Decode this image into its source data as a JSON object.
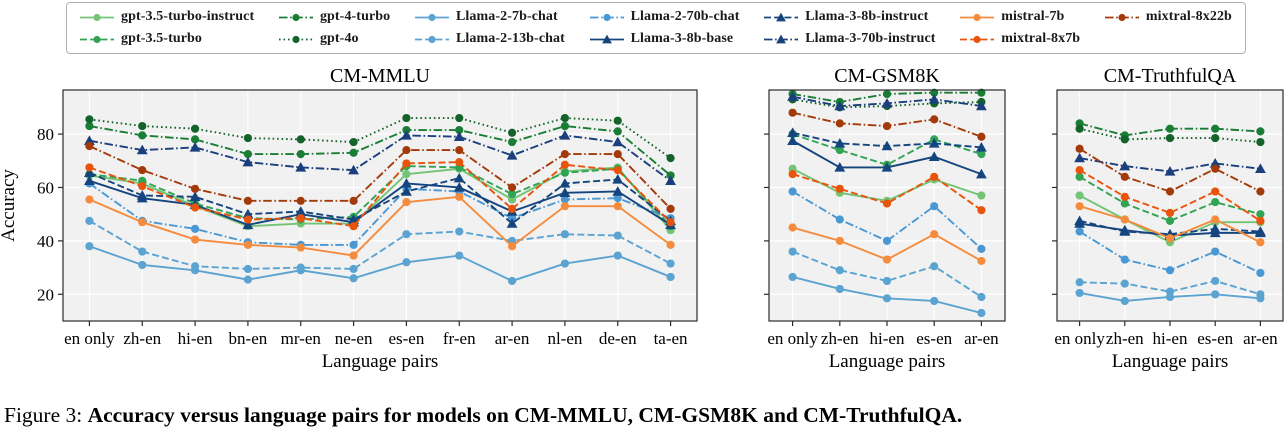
{
  "figure": {
    "caption_prefix": "Figure 3: ",
    "caption_bold": "Accuracy versus language pairs for models on CM-MMLU, CM-GSM8K and CM-TruthfulQA."
  },
  "models": [
    {
      "name": "gpt-3.5-turbo-instruct",
      "color": "#74c476",
      "dash": "solid",
      "marker": "circle"
    },
    {
      "name": "gpt-3.5-turbo",
      "color": "#31a354",
      "dash": "dashed",
      "marker": "circle"
    },
    {
      "name": "gpt-4-turbo",
      "color": "#1a7d36",
      "dash": "dashdot",
      "marker": "circle"
    },
    {
      "name": "gpt-4o",
      "color": "#14632a",
      "dash": "dotted",
      "marker": "circle"
    },
    {
      "name": "Llama-2-7b-chat",
      "color": "#5ba3d0",
      "dash": "solid",
      "marker": "circle"
    },
    {
      "name": "Llama-2-13b-chat",
      "color": "#5ba3d0",
      "dash": "dashed",
      "marker": "circle"
    },
    {
      "name": "Llama-2-70b-chat",
      "color": "#4a98d3",
      "dash": "dashdot",
      "marker": "circle"
    },
    {
      "name": "Llama-3-8b-base",
      "color": "#15457e",
      "dash": "solid",
      "marker": "triangle"
    },
    {
      "name": "Llama-3-8b-instruct",
      "color": "#15457e",
      "dash": "dashed",
      "marker": "triangle"
    },
    {
      "name": "Llama-3-70b-instruct",
      "color": "#1b3f7d",
      "dash": "dashdot",
      "marker": "triangle"
    },
    {
      "name": "mistral-7b",
      "color": "#f58b3c",
      "dash": "solid",
      "marker": "circle"
    },
    {
      "name": "mixtral-8x7b",
      "color": "#e8540c",
      "dash": "dashed",
      "marker": "circle"
    },
    {
      "name": "mixtral-8x22b",
      "color": "#a33a0a",
      "dash": "dashdot",
      "marker": "circle"
    }
  ],
  "chart_data": [
    {
      "type": "line",
      "title": "CM-MMLU",
      "xlabel": "Language pairs",
      "ylabel": "Accuracy",
      "yticks": [
        20,
        40,
        60,
        80
      ],
      "ylim": [
        10,
        96.5
      ],
      "show_ytick_labels": true,
      "grid": true,
      "categories": [
        "en only",
        "zh-en",
        "hi-en",
        "bn-en",
        "mr-en",
        "ne-en",
        "es-en",
        "fr-en",
        "ar-en",
        "nl-en",
        "de-en",
        "ta-en"
      ],
      "series": [
        {
          "name": "gpt-3.5-turbo-instruct",
          "values": [
            64.5,
            61.5,
            53,
            45.5,
            46.5,
            46.5,
            65,
            67,
            55.5,
            66,
            67.5,
            44
          ]
        },
        {
          "name": "gpt-3.5-turbo",
          "values": [
            65,
            62.5,
            54,
            48.5,
            48,
            49,
            68,
            67.5,
            57.5,
            65.5,
            67,
            45.5
          ]
        },
        {
          "name": "gpt-4-turbo",
          "values": [
            83,
            79.5,
            78,
            72.5,
            72.5,
            73,
            81.5,
            81.5,
            77,
            83,
            81,
            64.5
          ]
        },
        {
          "name": "gpt-4o",
          "values": [
            85.5,
            83,
            82,
            78.5,
            78,
            77,
            86,
            86,
            80.5,
            86,
            85,
            71
          ]
        },
        {
          "name": "Llama-2-7b-chat",
          "values": [
            38,
            31,
            29,
            25.5,
            29,
            26,
            32,
            34.5,
            25,
            31.5,
            34.5,
            26.5
          ]
        },
        {
          "name": "Llama-2-13b-chat",
          "values": [
            47.5,
            36,
            30.5,
            29.5,
            30,
            29.5,
            42.5,
            43.5,
            40,
            42.5,
            42,
            31.5
          ]
        },
        {
          "name": "Llama-2-70b-chat",
          "values": [
            61.5,
            47.5,
            44.5,
            39.5,
            38.5,
            38.5,
            59.5,
            58.5,
            48.5,
            55.5,
            56,
            48.5
          ]
        },
        {
          "name": "Llama-3-8b-base",
          "values": [
            62.5,
            56,
            53.5,
            46,
            50,
            47,
            61.5,
            60,
            51,
            58,
            58.5,
            46
          ]
        },
        {
          "name": "Llama-3-8b-instruct",
          "values": [
            65.5,
            57,
            56.5,
            50,
            51,
            48,
            58.5,
            63.5,
            46.5,
            61.5,
            63,
            47.5
          ]
        },
        {
          "name": "Llama-3-70b-instruct",
          "values": [
            77.5,
            74,
            75,
            69.5,
            67.5,
            66.5,
            79.5,
            79,
            72,
            79.5,
            77,
            62.5
          ]
        },
        {
          "name": "mistral-7b",
          "values": [
            55.5,
            47,
            40.5,
            38.5,
            37.5,
            34.5,
            54.5,
            56.5,
            38,
            53,
            53,
            38.5
          ]
        },
        {
          "name": "mixtral-8x7b",
          "values": [
            67.5,
            60.5,
            52.5,
            48,
            48.5,
            45.5,
            69,
            69.5,
            52,
            68.5,
            66.5,
            47
          ]
        },
        {
          "name": "mixtral-8x22b",
          "values": [
            75.5,
            66.5,
            59.5,
            55,
            55,
            55,
            74,
            74,
            60,
            72.5,
            72.5,
            52
          ]
        }
      ]
    },
    {
      "type": "line",
      "title": "CM-GSM8K",
      "xlabel": "Language pairs",
      "ylabel": "",
      "yticks": [
        20,
        40,
        60,
        80
      ],
      "ylim": [
        10,
        96.5
      ],
      "show_ytick_labels": false,
      "grid": true,
      "categories": [
        "en only",
        "zh-en",
        "hi-en",
        "es-en",
        "ar-en"
      ],
      "series": [
        {
          "name": "gpt-3.5-turbo-instruct",
          "values": [
            67,
            58,
            55,
            63,
            57
          ]
        },
        {
          "name": "gpt-3.5-turbo",
          "values": [
            80,
            74,
            68.5,
            78,
            72.5
          ]
        },
        {
          "name": "gpt-4-turbo",
          "values": [
            95,
            92,
            95,
            95.5,
            95.5
          ]
        },
        {
          "name": "gpt-4o",
          "values": [
            93,
            90,
            90.5,
            91.5,
            92
          ]
        },
        {
          "name": "Llama-2-7b-chat",
          "values": [
            26.5,
            22,
            18.5,
            17.5,
            13
          ]
        },
        {
          "name": "Llama-2-13b-chat",
          "values": [
            36,
            29,
            25,
            30.5,
            19
          ]
        },
        {
          "name": "Llama-2-70b-chat",
          "values": [
            58.5,
            48,
            40,
            53,
            37
          ]
        },
        {
          "name": "Llama-3-8b-base",
          "values": [
            77.5,
            67.5,
            67.5,
            71.5,
            65
          ]
        },
        {
          "name": "Llama-3-8b-instruct",
          "values": [
            80.5,
            76.5,
            75.5,
            76.5,
            75
          ]
        },
        {
          "name": "Llama-3-70b-instruct",
          "values": [
            94,
            90.5,
            91.5,
            93,
            90.5
          ]
        },
        {
          "name": "mistral-7b",
          "values": [
            45,
            40,
            33,
            42.5,
            32.5
          ]
        },
        {
          "name": "mixtral-8x7b",
          "values": [
            65,
            59.5,
            54,
            64,
            51.5
          ]
        },
        {
          "name": "mixtral-8x22b",
          "values": [
            88,
            84,
            83,
            85.5,
            79
          ]
        }
      ]
    },
    {
      "type": "line",
      "title": "CM-TruthfulQA",
      "xlabel": "Language pairs",
      "ylabel": "",
      "yticks": [
        20,
        40,
        60,
        80
      ],
      "ylim": [
        10,
        96.5
      ],
      "show_ytick_labels": false,
      "grid": true,
      "categories": [
        "en only",
        "zh-en",
        "hi-en",
        "es-en",
        "ar-en"
      ],
      "series": [
        {
          "name": "gpt-3.5-turbo-instruct",
          "values": [
            57,
            48,
            39.5,
            47,
            47
          ]
        },
        {
          "name": "gpt-3.5-turbo",
          "values": [
            64,
            54,
            47.5,
            54.5,
            50
          ]
        },
        {
          "name": "gpt-4-turbo",
          "values": [
            84,
            79.5,
            82,
            82,
            81
          ]
        },
        {
          "name": "gpt-4o",
          "values": [
            82,
            78,
            78.5,
            78.5,
            77
          ]
        },
        {
          "name": "Llama-2-7b-chat",
          "values": [
            20.5,
            17.5,
            19,
            20,
            18.5
          ]
        },
        {
          "name": "Llama-2-13b-chat",
          "values": [
            24.5,
            24,
            21,
            25,
            20
          ]
        },
        {
          "name": "Llama-2-70b-chat",
          "values": [
            43.5,
            33,
            29,
            36,
            28
          ]
        },
        {
          "name": "Llama-3-8b-base",
          "values": [
            46.5,
            44,
            42,
            43,
            43
          ]
        },
        {
          "name": "Llama-3-8b-instruct",
          "values": [
            47.5,
            43.5,
            42.5,
            44.5,
            43.5
          ]
        },
        {
          "name": "Llama-3-70b-instruct",
          "values": [
            71,
            68,
            66,
            69,
            67
          ]
        },
        {
          "name": "mistral-7b",
          "values": [
            53,
            48,
            41,
            48,
            39.5
          ]
        },
        {
          "name": "mixtral-8x7b",
          "values": [
            66.5,
            56.5,
            50.5,
            58.5,
            47.5
          ]
        },
        {
          "name": "mixtral-8x22b",
          "values": [
            74.5,
            64,
            58.5,
            67,
            58.5
          ]
        }
      ]
    }
  ]
}
